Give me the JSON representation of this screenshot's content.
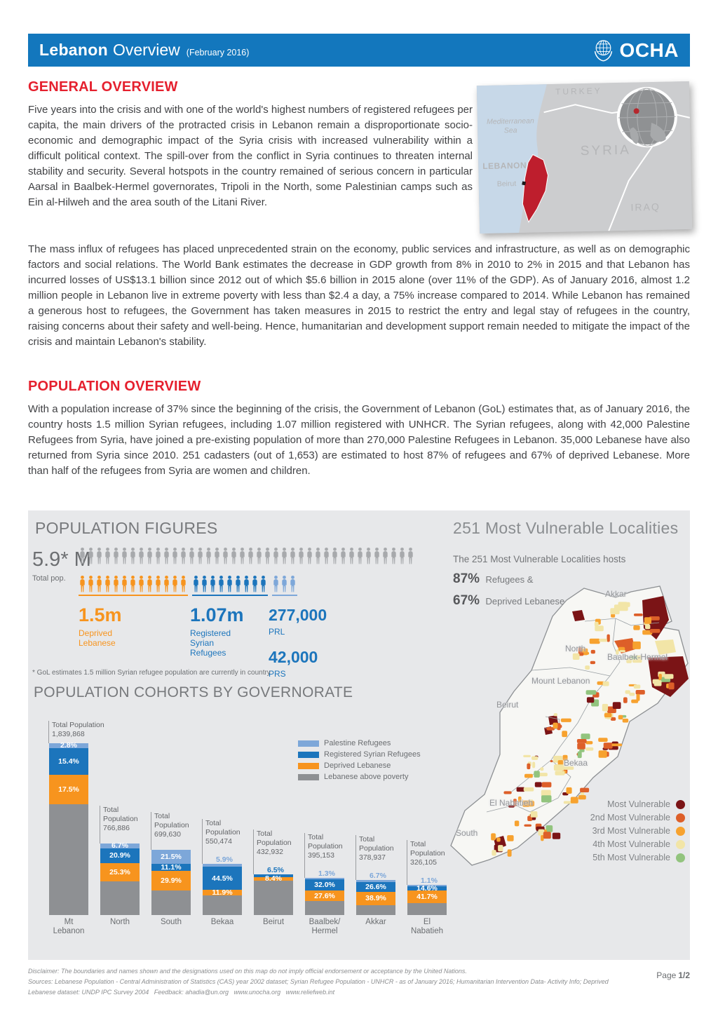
{
  "header": {
    "title_bold": "Lebanon",
    "title_light": "Overview",
    "title_suffix": "(February 2016)",
    "logo_text": "OCHA",
    "bar_color": "#1377bd"
  },
  "general_overview": {
    "heading": "GENERAL OVERVIEW",
    "para1": "Five years into the crisis and with one of the world's highest numbers of registered refugees per capita, the main drivers of the protracted crisis in Lebanon remain a disproportionate socio-economic and demographic impact of the Syria crisis with increased vulnerability within a difficult political context. The spill-over from the conflict in Syria continues to threaten internal stability and security. Several hotspots in the country remained of serious concern in particular Aarsal in Baalbek-Hermel governorates, Tripoli in the North, some Palestinian camps such as Ein al-Hilweh and the area south of the Litani River.",
    "para2": "The mass influx of refugees has placed unprecedented strain on the economy, public services and infrastructure, as well as on demographic factors and social relations. The World Bank estimates the decrease in GDP growth from 8% in 2010 to 2% in 2015 and that Lebanon has incurred losses of US$13.1 billion since 2012 out of which $5.6 billion in 2015 alone (over 11% of the GDP). As of January 2016, almost 1.2 million people in Lebanon live in extreme poverty with less than $2.4 a day, a 75% increase compared to 2014. While Lebanon has remained a generous host to refugees, the Government has taken measures in 2015 to restrict the entry and legal stay of refugees in the country, raising concerns about their safety and well-being. Hence, humanitarian and development support remain needed to mitigate the impact of the crisis and maintain Lebanon's stability."
  },
  "locator_map": {
    "turkey": "TURKEY",
    "sea": "Mediterranean Sea",
    "lebanon": "LEBANON",
    "beirut": "Beirut",
    "syria": "SYRIA",
    "iraq": "IRAQ"
  },
  "population_overview": {
    "heading": "POPULATION OVERVIEW",
    "para": "With a population increase of 37% since the beginning of the crisis, the Government of Lebanon (GoL) estimates that, as of January 2016, the country hosts 1.5 million Syrian refugees, including 1.07 million registered with UNHCR. The Syrian refugees, along with 42,000 Palestine Refugees from Syria, have joined a pre-existing population of more than 270,000 Palestine Refugees in Lebanon. 35,000 Lebanese have also returned from Syria since 2010.  251 cadasters (out of 1,653) are estimated to host 87% of refugees and 67% of deprived Lebanese. More than half of the refugees from Syria are women and children."
  },
  "population_figures": {
    "heading": "POPULATION FIGURES",
    "total": {
      "value": "5.9* M",
      "label": "Total pop."
    },
    "pictogram": {
      "total_row": {
        "name": "total-population",
        "count": 40,
        "color": "#a7a9ac"
      },
      "groups": [
        {
          "name": "deprived-lebanese",
          "count": 13,
          "color": "#f7941e"
        },
        {
          "name": "registered-syrian-refugees",
          "count": 9,
          "color": "#1c75bc"
        },
        {
          "name": "palestine-refugees",
          "count": 3,
          "color": "#7da7d9"
        }
      ]
    },
    "stats": [
      {
        "value": "1.5m",
        "label": "Deprived Lebanese",
        "color": "#f7941e"
      },
      {
        "value": "1.07m",
        "label": "Registered Syrian Refugees",
        "color": "#1c75bc"
      },
      {
        "value": "277,000",
        "label": "PRL",
        "color": "#1c75bc"
      },
      {
        "value": "42,000",
        "label": "PRS",
        "color": "#1c75bc"
      }
    ],
    "footnote": "* GoL estimates 1.5 million Syrian refugee population are currently in country"
  },
  "vulnerable_localities": {
    "heading": "251 Most Vulnerable Localities",
    "intro": "The 251 Most Vulnerable Localities hosts",
    "stats": [
      {
        "value": "87%",
        "label": "Refugees &"
      },
      {
        "value": "67%",
        "label": "Deprived Lebanese"
      }
    ],
    "regions": [
      "Akkar",
      "North",
      "Baalbek-Hermel",
      "Mount Lebanon",
      "Beirut",
      "Bekaa",
      "El Nabatieh",
      "South"
    ],
    "legend": [
      {
        "label": "Most Vulnerable",
        "color": "#7b1416"
      },
      {
        "label": "2nd Most Vulnerable",
        "color": "#dd5f29"
      },
      {
        "label": "3rd Most Vulnerable",
        "color": "#f7a22f"
      },
      {
        "label": "4th Most Vulnerable",
        "color": "#f2e5a7"
      },
      {
        "label": "5th Most Vulnerable",
        "color": "#92c47e"
      }
    ]
  },
  "chart_data": {
    "type": "bar",
    "stacked": true,
    "title": "POPULATION COHORTS BY GOVERNORATE",
    "total_label": "Total Population",
    "ylabel": "",
    "xlabel": "",
    "note": "bar height proportional to total population; percentages are shares of each cohort",
    "legend": [
      {
        "key": "palestine",
        "label": "Palestine Refugees",
        "color": "#7da7d9"
      },
      {
        "key": "syrian",
        "label": "Registered Syrian Refugees",
        "color": "#1c75bc"
      },
      {
        "key": "deprived",
        "label": "Deprived Lebanese",
        "color": "#f7941e"
      },
      {
        "key": "above_poverty",
        "label": "Lebanese above poverty",
        "color": "#8e9093"
      }
    ],
    "categories": [
      "Mt Lebanon",
      "North",
      "South",
      "Bekaa",
      "Beirut",
      "Baalbek/Hermel",
      "Akkar",
      "El Nabatieh"
    ],
    "bars": [
      {
        "category": "Mt Lebanon",
        "total": 1839868,
        "total_text": "1,839,868",
        "segments": [
          {
            "key": "palestine",
            "pct": 2.8,
            "text": "2.8%",
            "label": "in"
          },
          {
            "key": "syrian",
            "pct": 15.4,
            "text": "15.4%",
            "label": "in"
          },
          {
            "key": "deprived",
            "pct": 17.5,
            "text": "17.5%",
            "label": "in"
          }
        ]
      },
      {
        "category": "North",
        "total": 766886,
        "total_text": "766,886",
        "segments": [
          {
            "key": "palestine",
            "pct": 6.7,
            "text": "6.7%",
            "label": "in"
          },
          {
            "key": "syrian",
            "pct": 20.9,
            "text": "20.9%",
            "label": "in"
          },
          {
            "key": "deprived",
            "pct": 25.3,
            "text": "25.3%",
            "label": "in"
          }
        ]
      },
      {
        "category": "South",
        "total": 699630,
        "total_text": "699,630",
        "segments": [
          {
            "key": "palestine",
            "pct": 21.5,
            "text": "21.5%",
            "label": "in"
          },
          {
            "key": "syrian",
            "pct": 11.1,
            "text": "11.1%",
            "label": "in"
          },
          {
            "key": "deprived",
            "pct": 29.9,
            "text": "29.9%",
            "label": "in"
          }
        ]
      },
      {
        "category": "Bekaa",
        "total": 550474,
        "total_text": "550,474",
        "segments": [
          {
            "key": "palestine",
            "pct": 5.9,
            "text": "5.9%",
            "label": "above"
          },
          {
            "key": "syrian",
            "pct": 44.5,
            "text": "44.5%",
            "label": "in"
          },
          {
            "key": "deprived",
            "pct": 11.9,
            "text": "11.9%",
            "label": "in"
          }
        ]
      },
      {
        "category": "Beirut",
        "total": 432932,
        "total_text": "432,932",
        "segments": [
          {
            "key": "syrian",
            "pct": 6.5,
            "text": "6.5%",
            "label": "above"
          },
          {
            "key": "deprived",
            "pct": 8.4,
            "text": "8.4%",
            "label": "in"
          }
        ]
      },
      {
        "category": "Baalbek/Hermel",
        "total": 395153,
        "total_text": "395,153",
        "segments": [
          {
            "key": "palestine",
            "pct": 1.3,
            "text": "1.3%",
            "label": "above"
          },
          {
            "key": "syrian",
            "pct": 32.0,
            "text": "32.0%",
            "label": "in"
          },
          {
            "key": "deprived",
            "pct": 27.6,
            "text": "27.6%",
            "label": "in"
          }
        ]
      },
      {
        "category": "Akkar",
        "total": 378937,
        "total_text": "378,937",
        "segments": [
          {
            "key": "palestine",
            "pct": 6.7,
            "text": "6.7%",
            "label": "above"
          },
          {
            "key": "syrian",
            "pct": 26.6,
            "text": "26.6%",
            "label": "in"
          },
          {
            "key": "deprived",
            "pct": 38.9,
            "text": "38.9%",
            "label": "in"
          }
        ]
      },
      {
        "category": "El Nabatieh",
        "total": 326105,
        "total_text": "326,105",
        "segments": [
          {
            "key": "palestine",
            "pct": 1.1,
            "text": "1.1%",
            "label": "above"
          },
          {
            "key": "syrian",
            "pct": 14.6,
            "text": "14.6%",
            "label": "in"
          },
          {
            "key": "deprived",
            "pct": 41.7,
            "text": "41.7%",
            "label": "in"
          }
        ]
      }
    ]
  },
  "footer": {
    "disclaimer": "Disclaimer: The boundaries and names shown and the designations used on this map do not imply official endorsement or acceptance by the United Nations.",
    "sources": "Sources: Lebanese Population - Central Administration of Statistics (CAS) year 2002 dataset; Syrian Refugee Population - UNHCR - as of January 2016;  Humanitarian Intervention Data- Activity Info;  Deprived Lebanese dataset: UNDP IPC Survey 2004",
    "feedback_label": "Feedback:",
    "feedback_email": "ahadia@un.org",
    "url1": "www.unocha.org",
    "url2": "www.reliefweb.int",
    "page_label": "Page",
    "page_value": "1/2"
  }
}
